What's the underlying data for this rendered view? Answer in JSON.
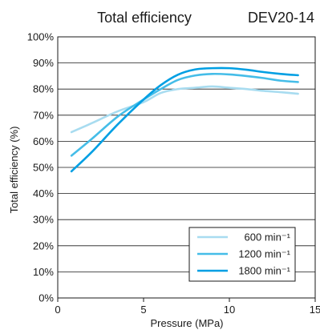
{
  "chart_data": {
    "type": "line",
    "title": "Total efficiency",
    "subtitle": "DEV20-14",
    "xlabel": "Pressure (MPa)",
    "ylabel": "Total efficiency (%)",
    "xlim": [
      0,
      15
    ],
    "ylim": [
      0,
      100
    ],
    "x_ticks": [
      "0",
      "5",
      "10",
      "15"
    ],
    "y_ticks": [
      "0%",
      "10%",
      "20%",
      "30%",
      "40%",
      "50%",
      "60%",
      "70%",
      "80%",
      "90%",
      "100%"
    ],
    "grid": "horizontal",
    "legend_position": "bottom-right",
    "series": [
      {
        "name": "600 min⁻¹",
        "color": "#a8dcf0",
        "x": [
          0.8,
          2,
          3.5,
          5,
          6,
          7,
          8,
          9,
          10,
          11,
          12,
          13,
          14
        ],
        "y": [
          63.5,
          67,
          71.5,
          75,
          78.5,
          80,
          80.5,
          81,
          80.5,
          80,
          79.3,
          78.8,
          78.2
        ]
      },
      {
        "name": "1200 min⁻¹",
        "color": "#45bde8",
        "x": [
          0.8,
          2,
          3.5,
          5,
          6,
          7,
          8,
          9,
          10,
          11,
          12,
          13,
          14
        ],
        "y": [
          54.5,
          61,
          69.5,
          76,
          80,
          83.5,
          85.2,
          85.8,
          85.6,
          85,
          84.2,
          83.2,
          82.7
        ]
      },
      {
        "name": "1800 min⁻¹",
        "color": "#009fe3",
        "x": [
          0.8,
          2,
          3.5,
          5,
          6,
          7,
          8,
          9,
          10,
          11,
          12,
          13,
          14
        ],
        "y": [
          48.5,
          56,
          66.5,
          76,
          81.5,
          85.5,
          87.5,
          88,
          88,
          87.4,
          86.5,
          85.8,
          85.3
        ]
      }
    ]
  }
}
